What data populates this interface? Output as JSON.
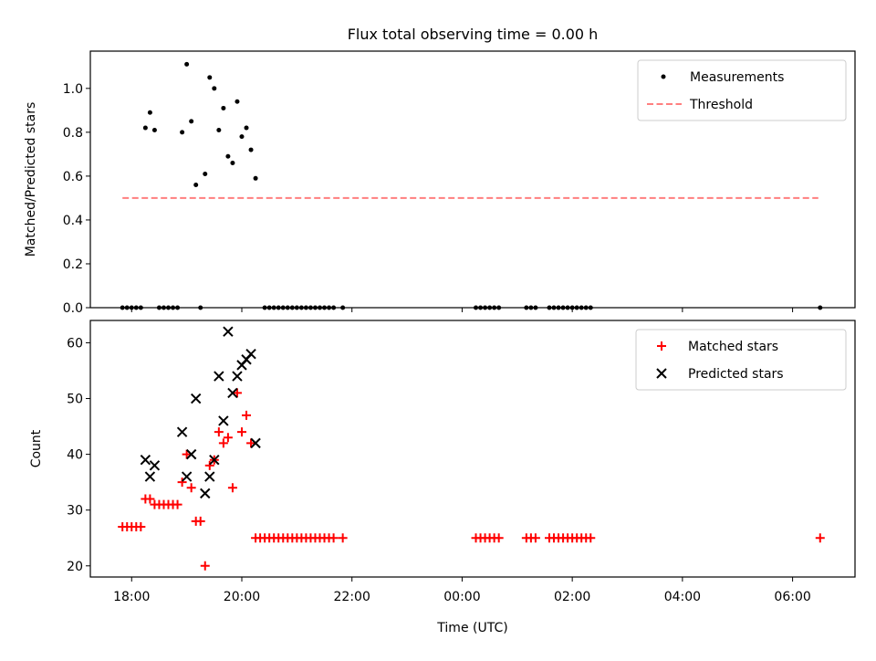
{
  "figure": {
    "title": "Flux total observing time = 0.00 h"
  },
  "chart_data": [
    {
      "type": "scatter",
      "ylabel": "Matched/Predicted stars",
      "xlabel": "",
      "xlim": [
        "17:15",
        "31:08"
      ],
      "ylim": [
        0,
        1.17
      ],
      "yticks": [
        0.0,
        0.2,
        0.4,
        0.6,
        0.8,
        1.0
      ],
      "ytick_labels": [
        "0.0",
        "0.2",
        "0.4",
        "0.6",
        "0.8",
        "1.0"
      ],
      "legend_position": "top-right",
      "grid": false,
      "series": [
        {
          "name": "Measurements",
          "marker": "dot",
          "color": "#000000",
          "points": [
            [
              "17:50",
              0
            ],
            [
              "17:55",
              0
            ],
            [
              "18:00",
              0
            ],
            [
              "18:05",
              0
            ],
            [
              "18:10",
              0
            ],
            [
              "18:15",
              0.82
            ],
            [
              "18:20",
              0.89
            ],
            [
              "18:25",
              0.81
            ],
            [
              "18:30",
              0
            ],
            [
              "18:35",
              0
            ],
            [
              "18:40",
              0
            ],
            [
              "18:45",
              0
            ],
            [
              "18:50",
              0
            ],
            [
              "18:55",
              0.8
            ],
            [
              "19:00",
              1.11
            ],
            [
              "19:05",
              0.85
            ],
            [
              "19:10",
              0.56
            ],
            [
              "19:15",
              0
            ],
            [
              "19:20",
              0.61
            ],
            [
              "19:25",
              1.05
            ],
            [
              "19:30",
              1.0
            ],
            [
              "19:35",
              0.81
            ],
            [
              "19:40",
              0.91
            ],
            [
              "19:45",
              0.69
            ],
            [
              "19:50",
              0.66
            ],
            [
              "19:55",
              0.94
            ],
            [
              "20:00",
              0.78
            ],
            [
              "20:05",
              0.82
            ],
            [
              "20:10",
              0.72
            ],
            [
              "20:15",
              0.59
            ],
            [
              "20:25",
              0
            ],
            [
              "20:30",
              0
            ],
            [
              "20:35",
              0
            ],
            [
              "20:40",
              0
            ],
            [
              "20:45",
              0
            ],
            [
              "20:50",
              0
            ],
            [
              "20:55",
              0
            ],
            [
              "21:00",
              0
            ],
            [
              "21:05",
              0
            ],
            [
              "21:10",
              0
            ],
            [
              "21:15",
              0
            ],
            [
              "21:20",
              0
            ],
            [
              "21:25",
              0
            ],
            [
              "21:30",
              0
            ],
            [
              "21:35",
              0
            ],
            [
              "21:40",
              0
            ],
            [
              "21:50",
              0
            ],
            [
              "24:15",
              0
            ],
            [
              "24:20",
              0
            ],
            [
              "24:25",
              0
            ],
            [
              "24:30",
              0
            ],
            [
              "24:35",
              0
            ],
            [
              "24:40",
              0
            ],
            [
              "25:10",
              0
            ],
            [
              "25:15",
              0
            ],
            [
              "25:20",
              0
            ],
            [
              "25:35",
              0
            ],
            [
              "25:40",
              0
            ],
            [
              "25:45",
              0
            ],
            [
              "25:50",
              0
            ],
            [
              "25:55",
              0
            ],
            [
              "26:00",
              0
            ],
            [
              "26:05",
              0
            ],
            [
              "26:10",
              0
            ],
            [
              "26:15",
              0
            ],
            [
              "26:20",
              0
            ],
            [
              "30:30",
              0
            ]
          ]
        },
        {
          "name": "Threshold",
          "marker": "dashed-line",
          "color": "#ff7f7f",
          "points": [
            [
              "17:50",
              0.5
            ],
            [
              "30:28",
              0.5
            ]
          ]
        }
      ]
    },
    {
      "type": "scatter",
      "ylabel": "Count",
      "xlabel": "Time (UTC)",
      "xlim": [
        "17:15",
        "31:08"
      ],
      "ylim": [
        18,
        64
      ],
      "yticks": [
        20,
        30,
        40,
        50,
        60
      ],
      "ytick_labels": [
        "20",
        "30",
        "40",
        "50",
        "60"
      ],
      "xticks": [
        "18:00",
        "20:00",
        "22:00",
        "24:00",
        "26:00",
        "28:00",
        "30:00"
      ],
      "xtick_labels": [
        "18:00",
        "20:00",
        "22:00",
        "00:00",
        "02:00",
        "04:00",
        "06:00"
      ],
      "legend_position": "top-right",
      "grid": false,
      "series": [
        {
          "name": "Matched stars",
          "marker": "plus",
          "color": "#ff0000",
          "points": [
            [
              "17:50",
              27
            ],
            [
              "17:55",
              27
            ],
            [
              "18:00",
              27
            ],
            [
              "18:05",
              27
            ],
            [
              "18:10",
              27
            ],
            [
              "18:15",
              32
            ],
            [
              "18:20",
              32
            ],
            [
              "18:25",
              31
            ],
            [
              "18:30",
              31
            ],
            [
              "18:35",
              31
            ],
            [
              "18:40",
              31
            ],
            [
              "18:45",
              31
            ],
            [
              "18:50",
              31
            ],
            [
              "18:55",
              35
            ],
            [
              "19:00",
              40
            ],
            [
              "19:05",
              34
            ],
            [
              "19:10",
              28
            ],
            [
              "19:15",
              28
            ],
            [
              "19:20",
              20
            ],
            [
              "19:25",
              38
            ],
            [
              "19:30",
              39
            ],
            [
              "19:35",
              44
            ],
            [
              "19:40",
              42
            ],
            [
              "19:45",
              43
            ],
            [
              "19:50",
              34
            ],
            [
              "19:55",
              51
            ],
            [
              "20:00",
              44
            ],
            [
              "20:05",
              47
            ],
            [
              "20:10",
              42
            ],
            [
              "20:15",
              25
            ],
            [
              "20:20",
              25
            ],
            [
              "20:25",
              25
            ],
            [
              "20:30",
              25
            ],
            [
              "20:35",
              25
            ],
            [
              "20:40",
              25
            ],
            [
              "20:45",
              25
            ],
            [
              "20:50",
              25
            ],
            [
              "20:55",
              25
            ],
            [
              "21:00",
              25
            ],
            [
              "21:05",
              25
            ],
            [
              "21:10",
              25
            ],
            [
              "21:15",
              25
            ],
            [
              "21:20",
              25
            ],
            [
              "21:25",
              25
            ],
            [
              "21:30",
              25
            ],
            [
              "21:35",
              25
            ],
            [
              "21:40",
              25
            ],
            [
              "21:50",
              25
            ],
            [
              "24:15",
              25
            ],
            [
              "24:20",
              25
            ],
            [
              "24:25",
              25
            ],
            [
              "24:30",
              25
            ],
            [
              "24:35",
              25
            ],
            [
              "24:40",
              25
            ],
            [
              "25:10",
              25
            ],
            [
              "25:15",
              25
            ],
            [
              "25:20",
              25
            ],
            [
              "25:35",
              25
            ],
            [
              "25:40",
              25
            ],
            [
              "25:45",
              25
            ],
            [
              "25:50",
              25
            ],
            [
              "25:55",
              25
            ],
            [
              "26:00",
              25
            ],
            [
              "26:05",
              25
            ],
            [
              "26:10",
              25
            ],
            [
              "26:15",
              25
            ],
            [
              "26:20",
              25
            ],
            [
              "30:30",
              25
            ]
          ]
        },
        {
          "name": "Predicted stars",
          "marker": "x",
          "color": "#000000",
          "points": [
            [
              "18:15",
              39
            ],
            [
              "18:20",
              36
            ],
            [
              "18:25",
              38
            ],
            [
              "18:55",
              44
            ],
            [
              "19:00",
              36
            ],
            [
              "19:05",
              40
            ],
            [
              "19:10",
              50
            ],
            [
              "19:20",
              33
            ],
            [
              "19:25",
              36
            ],
            [
              "19:30",
              39
            ],
            [
              "19:35",
              54
            ],
            [
              "19:40",
              46
            ],
            [
              "19:45",
              62
            ],
            [
              "19:50",
              51
            ],
            [
              "19:55",
              54
            ],
            [
              "20:00",
              56
            ],
            [
              "20:05",
              57
            ],
            [
              "20:10",
              58
            ],
            [
              "20:15",
              42
            ]
          ]
        }
      ]
    }
  ]
}
